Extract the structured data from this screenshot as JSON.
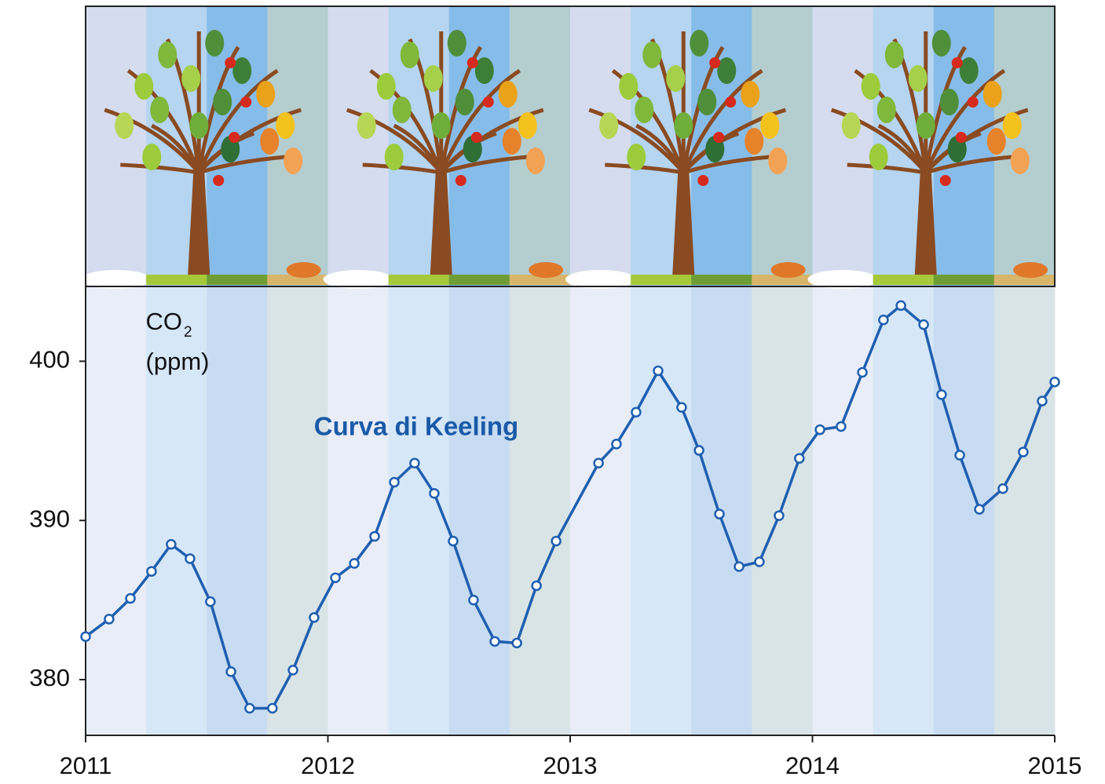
{
  "chart_data": {
    "type": "line",
    "y_label": {
      "text": "CO",
      "subscript": "2",
      "unit": "(ppm)"
    },
    "annotation": "Curva di Keeling",
    "x": [
      2011.0,
      2011.097,
      2011.185,
      2011.272,
      2011.353,
      2011.431,
      2011.515,
      2011.6,
      2011.677,
      2011.771,
      2011.856,
      2011.943,
      2012.031,
      2012.109,
      2012.193,
      2012.274,
      2012.358,
      2012.439,
      2012.517,
      2012.601,
      2012.689,
      2012.78,
      2012.861,
      2012.942,
      2013.117,
      2013.191,
      2013.272,
      2013.363,
      2013.46,
      2013.532,
      2013.616,
      2013.697,
      2013.781,
      2013.862,
      2013.946,
      2014.031,
      2014.118,
      2014.206,
      2014.293,
      2014.365,
      2014.459,
      2014.533,
      2014.608,
      2014.689,
      2014.786,
      2014.87,
      2014.948,
      2015.0
    ],
    "series": [
      {
        "name": "Curva di Keeling",
        "color": "#1f5fb0",
        "values": [
          382.7,
          383.8,
          385.1,
          386.8,
          388.5,
          387.6,
          384.9,
          380.5,
          378.2,
          378.2,
          380.6,
          383.9,
          386.4,
          387.3,
          389.0,
          392.4,
          393.6,
          391.7,
          388.7,
          385.0,
          382.4,
          382.3,
          385.9,
          388.7,
          393.6,
          394.8,
          396.8,
          399.4,
          397.1,
          394.4,
          390.4,
          387.1,
          387.4,
          390.3,
          393.9,
          395.7,
          395.9,
          399.3,
          402.6,
          403.5,
          402.3,
          397.9,
          394.1,
          390.7,
          392.0,
          394.3,
          397.5,
          398.7
        ]
      }
    ],
    "xlim": [
      2011,
      2015
    ],
    "xticks": [
      2011,
      2012,
      2013,
      2014,
      2015
    ],
    "ylim": [
      376.5,
      404.7
    ],
    "yticks": [
      380,
      390,
      400
    ]
  }
}
